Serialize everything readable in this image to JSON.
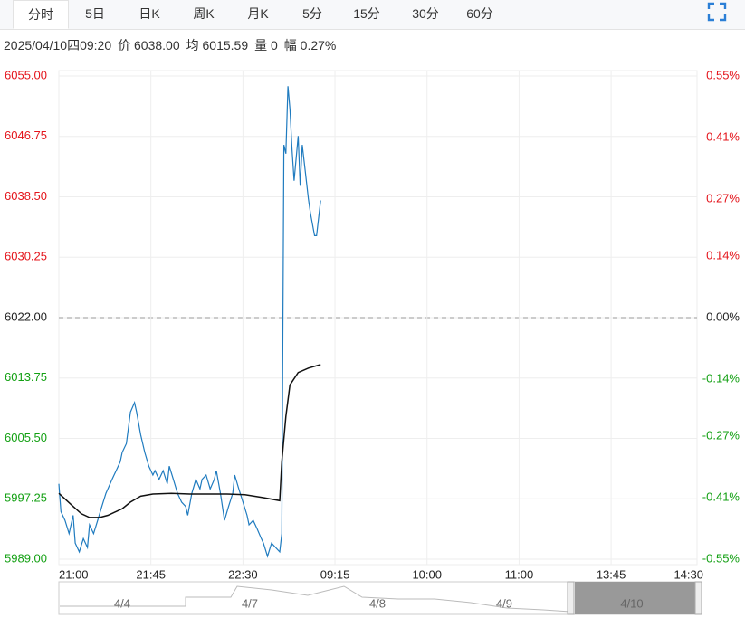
{
  "tabs": [
    "分时",
    "5日",
    "日K",
    "周K",
    "月K",
    "5分",
    "15分",
    "30分",
    "60分"
  ],
  "info": [
    "2025/04/10四09:20",
    "价 6038.00",
    "均 6015.59",
    "量 0",
    "幅 0.27%"
  ],
  "chart_data": {
    "type": "line",
    "xlim": [
      0,
      312
    ],
    "xticks": [
      {
        "value": 0,
        "label": "21:00"
      },
      {
        "value": 45,
        "label": "21:45"
      },
      {
        "value": 90,
        "label": "22:30"
      },
      {
        "value": 135,
        "label": "09:15"
      },
      {
        "value": 180,
        "label": "10:00"
      },
      {
        "value": 225,
        "label": "11:00"
      },
      {
        "value": 270,
        "label": "13:45"
      },
      {
        "value": 312,
        "label": "14:30"
      }
    ],
    "ylim": [
      5989,
      6055
    ],
    "yticks": [
      {
        "value": 6055,
        "label": "6055.00"
      },
      {
        "value": 6046.75,
        "label": "6046.75"
      },
      {
        "value": 6038.5,
        "label": "6038.50"
      },
      {
        "value": 6030.25,
        "label": "6030.25"
      },
      {
        "value": 6022,
        "label": "6022.00"
      },
      {
        "value": 6013.75,
        "label": "6013.75"
      },
      {
        "value": 6005.5,
        "label": "6005.50"
      },
      {
        "value": 5997.25,
        "label": "5997.25"
      },
      {
        "value": 5989,
        "label": "5989.00"
      }
    ],
    "y2lim": [
      -0.55,
      0.55
    ],
    "y2ticks": [
      {
        "value": 0.55,
        "label": "0.55%"
      },
      {
        "value": 0.41,
        "label": "0.41%"
      },
      {
        "value": 0.27,
        "label": "0.27%"
      },
      {
        "value": 0.14,
        "label": "0.14%"
      },
      {
        "value": 0,
        "label": "0.00%"
      },
      {
        "value": -0.14,
        "label": "-0.14%"
      },
      {
        "value": -0.27,
        "label": "-0.27%"
      },
      {
        "value": -0.41,
        "label": "-0.41%"
      },
      {
        "value": -0.55,
        "label": "-0.55%"
      }
    ],
    "grid": true,
    "up_color": "#e4141b",
    "down_color": "#13a013",
    "flat_color": "#222222",
    "series": [
      {
        "color": "#1f7bbf",
        "x": [
          0,
          1,
          3,
          5,
          7,
          8,
          10,
          12,
          14,
          15,
          17,
          19,
          21,
          23,
          24,
          26,
          28,
          30,
          31,
          33,
          35,
          37,
          38,
          40,
          42,
          44,
          46,
          47,
          49,
          51,
          53,
          54,
          56,
          58,
          60,
          62,
          63,
          65,
          67,
          69,
          70,
          72,
          74,
          76,
          77,
          79,
          81,
          83,
          85,
          86,
          88,
          90,
          92,
          93,
          95,
          97,
          99,
          100,
          102,
          104,
          106,
          108,
          109,
          110,
          111,
          112,
          113,
          114,
          115,
          117,
          118,
          119,
          121,
          122,
          123,
          125,
          126,
          128
        ],
        "values": [
          5999.3,
          5995.5,
          5994.3,
          5992.5,
          5995,
          5991.2,
          5990,
          5991.8,
          5990.6,
          5993.7,
          5992.5,
          5994.3,
          5996.2,
          5998,
          5998.6,
          5999.9,
          6001.1,
          6002.3,
          6003.6,
          6004.8,
          6009.1,
          6010.4,
          6009.1,
          6006,
          6003.6,
          6001.7,
          6000.5,
          6001.1,
          5999.9,
          6001.1,
          5999.3,
          6001.7,
          5999.9,
          5998,
          5996.8,
          5996.2,
          5995,
          5998,
          5999.9,
          5998.6,
          5999.9,
          6000.5,
          5998.6,
          5999.9,
          6001.1,
          5998,
          5994.3,
          5996.2,
          5998,
          6000.5,
          5998.6,
          5996.8,
          5995,
          5993.7,
          5994.3,
          5993.1,
          5991.8,
          5991.2,
          5989.4,
          5991.2,
          5990.6,
          5990,
          5992.5,
          6045.6,
          6044.4,
          6053.6,
          6050.5,
          6045,
          6040.7,
          6046.8,
          6040,
          6045.6,
          6040.7,
          6038.2,
          6036.3,
          6033.2,
          6033.2,
          6038
        ]
      },
      {
        "color": "#111111",
        "x": [
          0,
          7,
          11,
          15,
          20,
          24,
          31,
          35,
          40,
          46,
          55,
          64,
          73,
          82,
          91,
          100,
          108,
          109,
          111,
          113,
          117,
          122,
          128
        ],
        "values": [
          5998,
          5996.2,
          5995.2,
          5994.7,
          5994.7,
          5995,
          5995.9,
          5996.8,
          5997.6,
          5997.9,
          5998,
          5997.9,
          5997.9,
          5997.9,
          5997.8,
          5997.4,
          5997,
          6002.3,
          6008.5,
          6012.8,
          6014.5,
          6015.1,
          6015.59
        ]
      }
    ]
  },
  "navigator": [
    "4/4",
    "4/7",
    "4/8",
    "4/9",
    "4/10"
  ]
}
